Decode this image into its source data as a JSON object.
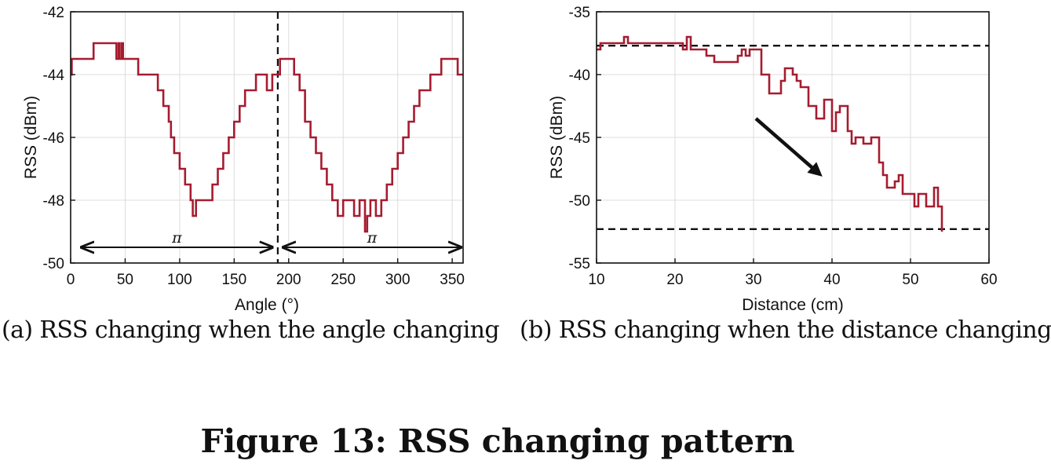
{
  "chart_data": [
    {
      "type": "line",
      "xlabel": "Angle (°)",
      "ylabel": "RSS (dBm)",
      "xlim": [
        0,
        360
      ],
      "ylim": [
        -50,
        -42
      ],
      "xticks": [
        "0",
        "50",
        "100",
        "150",
        "200",
        "250",
        "300",
        "350"
      ],
      "yticks": [
        "-42",
        "-44",
        "-46",
        "-48",
        "-50"
      ],
      "grid": true,
      "color": "#A51C30",
      "series": [
        {
          "x": [
            0,
            1,
            2,
            20,
            21,
            40,
            42,
            44,
            45,
            47,
            48,
            53,
            60,
            62,
            70,
            80,
            85,
            90,
            92,
            95,
            100,
            105,
            110,
            112,
            115,
            120,
            125,
            130,
            135,
            140,
            145,
            150,
            155,
            160,
            165,
            170,
            175,
            180,
            185,
            190,
            192,
            195,
            200,
            205,
            210,
            215,
            220,
            225,
            230,
            235,
            240,
            245,
            250,
            255,
            260,
            265,
            270,
            272,
            275,
            280,
            285,
            290,
            295,
            300,
            305,
            310,
            315,
            320,
            325,
            330,
            335,
            340,
            345,
            350,
            355,
            360
          ],
          "y": [
            -44,
            -43.5,
            -43.5,
            -43.5,
            -43,
            -43,
            -43.5,
            -43,
            -43.5,
            -43,
            -43.5,
            -43.5,
            -43.5,
            -44,
            -44,
            -44.5,
            -45,
            -45.5,
            -46,
            -46.5,
            -47,
            -47.5,
            -48,
            -48.5,
            -48,
            -48,
            -48,
            -47.5,
            -47,
            -46.5,
            -46,
            -45.5,
            -45,
            -44.5,
            -44.5,
            -44,
            -44,
            -44.5,
            -44,
            -44,
            -43.5,
            -43.5,
            -43.5,
            -44,
            -44.5,
            -45.5,
            -46,
            -46.5,
            -47,
            -47.5,
            -48,
            -48.5,
            -48,
            -48,
            -48.5,
            -48,
            -49,
            -48.5,
            -48,
            -48.5,
            -48,
            -47.5,
            -47,
            -46.5,
            -46,
            -45.5,
            -45,
            -44.5,
            -44.5,
            -44,
            -44,
            -43.5,
            -43.5,
            -43.5,
            -44,
            -44
          ]
        }
      ],
      "vline_x": 190,
      "annotations": [
        {
          "text": "π",
          "from": 10,
          "to": 185,
          "y": -49.5
        },
        {
          "text": "π",
          "from": 195,
          "to": 358,
          "y": -49.5
        }
      ]
    },
    {
      "type": "line",
      "xlabel": "Distance (cm)",
      "ylabel": "RSS (dBm)",
      "xlim": [
        10,
        60
      ],
      "ylim": [
        -55,
        -35
      ],
      "xticks": [
        "10",
        "20",
        "30",
        "40",
        "50",
        "60"
      ],
      "yticks": [
        "-35",
        "-40",
        "-45",
        "-50",
        "-55"
      ],
      "grid": true,
      "color": "#A51C30",
      "series": [
        {
          "x": [
            10,
            10.5,
            11,
            12,
            13,
            13.5,
            14,
            14.5,
            15,
            16,
            17,
            18,
            19,
            20,
            21,
            21.5,
            22,
            23,
            24,
            25,
            26,
            27,
            28,
            28.5,
            29,
            29.5,
            30,
            31,
            32,
            33,
            33.5,
            34,
            35,
            35.5,
            36,
            37,
            38,
            39,
            40,
            40.5,
            41,
            42,
            42.5,
            43,
            44,
            45,
            46,
            46.5,
            47,
            48,
            48.5,
            49,
            50,
            50.5,
            51,
            52,
            53,
            53.5,
            54
          ],
          "y": [
            -38,
            -37.5,
            -37.5,
            -37.5,
            -37.5,
            -37,
            -37.5,
            -37.5,
            -37.5,
            -37.5,
            -37.5,
            -37.5,
            -37.5,
            -37.5,
            -38,
            -37,
            -38,
            -38,
            -38.5,
            -39,
            -39,
            -39,
            -38.5,
            -38,
            -38.5,
            -38,
            -38,
            -40,
            -41.5,
            -41.5,
            -40.5,
            -39.5,
            -40,
            -40.5,
            -41,
            -42.5,
            -43.5,
            -42,
            -44.5,
            -43,
            -42.5,
            -44.5,
            -45.5,
            -45,
            -45.5,
            -45,
            -47,
            -48,
            -49,
            -48.5,
            -48,
            -49.5,
            -49.5,
            -50.5,
            -49.5,
            -50.5,
            -49,
            -50.5,
            -52.5
          ]
        }
      ],
      "hlines_y": [
        -37.7,
        -52.3
      ]
    }
  ],
  "captions": {
    "a": "(a)  RSS changing when the angle changing",
    "b": "(b)  RSS changing when the distance changing",
    "figure": "Figure 13: RSS changing pattern"
  }
}
